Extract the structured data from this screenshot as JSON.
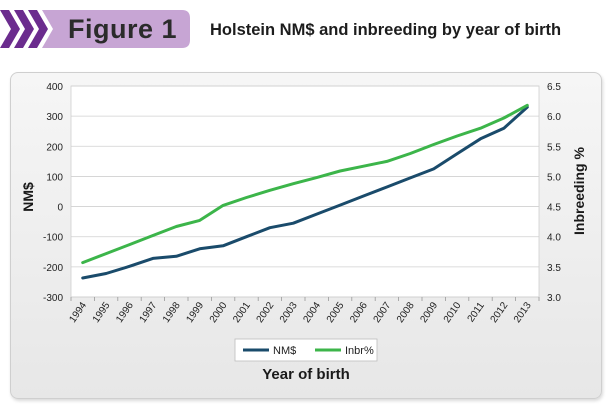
{
  "header": {
    "figure_label": "Figure 1",
    "title": "Holstein NM$ and inbreeding by year of birth"
  },
  "colors": {
    "nm_line": "#1a4b6b",
    "inbr_line": "#3cb54a",
    "tag_purple": "#6b2c8e",
    "tag_light": "#c7a5d4"
  },
  "chart_data": {
    "type": "line",
    "x": [
      "1994",
      "1995",
      "1996",
      "1997",
      "1998",
      "1999",
      "2000",
      "2001",
      "2002",
      "2003",
      "2004",
      "2005",
      "2006",
      "2007",
      "2008",
      "2009",
      "2010",
      "2011",
      "2012",
      "2013"
    ],
    "series": [
      {
        "name": "NM$",
        "axis": "left",
        "values": [
          -237,
          -222,
          -198,
          -172,
          -165,
          -140,
          -130,
          -100,
          -70,
          -55,
          -25,
          5,
          35,
          65,
          95,
          125,
          175,
          225,
          260,
          330
        ]
      },
      {
        "name": "Inbr%",
        "axis": "right",
        "values": [
          3.57,
          3.72,
          3.87,
          4.02,
          4.17,
          4.27,
          4.52,
          4.65,
          4.77,
          4.88,
          4.98,
          5.09,
          5.17,
          5.25,
          5.38,
          5.53,
          5.67,
          5.8,
          5.97,
          6.18
        ]
      }
    ],
    "xlabel": "Year of birth",
    "ylabel": "NM$",
    "y2label": "Inbreeding %",
    "ylim": [
      -300,
      400
    ],
    "yticks": [
      "400",
      "300",
      "200",
      "100",
      "0",
      "-100",
      "-200",
      "-300"
    ],
    "y2lim": [
      3.0,
      6.5
    ],
    "y2ticks": [
      "6.5",
      "6.0",
      "5.5",
      "5.0",
      "4.5",
      "4.0",
      "3.5",
      "3.0"
    ],
    "grid": "horizontal",
    "legend": "bottom-center"
  }
}
